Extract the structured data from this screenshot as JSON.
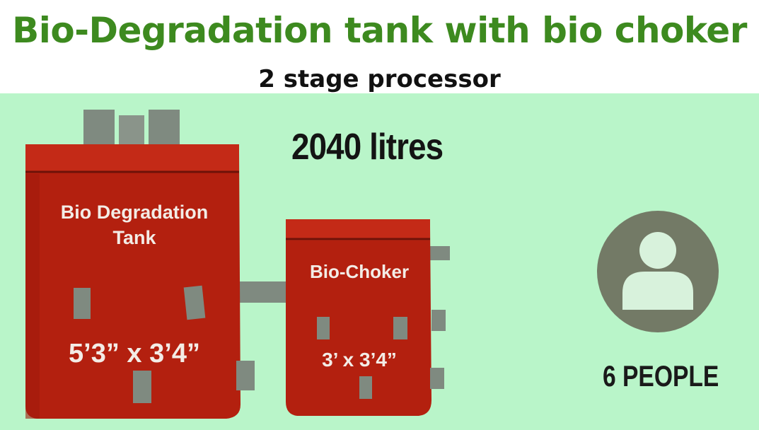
{
  "header": {
    "title": "Bio-Degradation tank with bio choker",
    "subtitle": "2 stage processor"
  },
  "capacity": "2040 litres",
  "tank_large": {
    "label_line1": "Bio Degradation",
    "label_line2": "Tank",
    "dimensions": "5’3” x 3’4”"
  },
  "tank_small": {
    "label": "Bio-Choker",
    "dimensions": "3’ x 3’4”"
  },
  "people": "6 PEOPLE",
  "icons": {
    "person": "person-silhouette-icon"
  },
  "colors": {
    "title_green": "#3d8a1f",
    "background": "#b9f5c9",
    "tank_red": "#b3200f",
    "pipe_gray": "#7f8a80",
    "avatar_circle": "#737a66",
    "avatar_figure": "#d8f2dc"
  }
}
